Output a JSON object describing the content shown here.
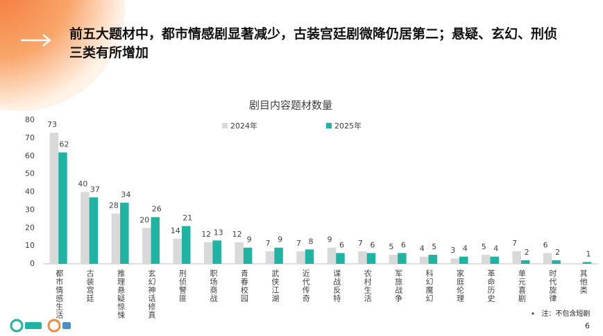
{
  "header": {
    "title": "前五大题材中，都市情感剧显著减少，古装宫廷剧微降仍居第二；悬疑、玄幻、刑侦三类有所增加"
  },
  "note": "注：不包含短剧",
  "page_number": "6",
  "chart_data": {
    "type": "bar",
    "title": "剧目内容题材数量",
    "categories": [
      "都市情感生活",
      "古装宫廷",
      "推理悬疑惊悚",
      "玄幻神话修真",
      "刑侦警匪",
      "职场商战",
      "青春校园",
      "武侠江湖",
      "近代传奇",
      "谍战反特",
      "农村生活",
      "军旅战争",
      "科幻魔幻",
      "家庭伦理",
      "革命历史",
      "单元喜剧",
      "时代旋律",
      "其他类"
    ],
    "series": [
      {
        "name": "2024年",
        "color": "#d9d9d9",
        "values": [
          73,
          40,
          28,
          20,
          14,
          12,
          12,
          7,
          7,
          9,
          7,
          5,
          4,
          3,
          5,
          7,
          6,
          null
        ]
      },
      {
        "name": "2025年",
        "color": "#1fb3a3",
        "values": [
          62,
          37,
          34,
          26,
          21,
          13,
          9,
          9,
          8,
          6,
          6,
          6,
          5,
          4,
          4,
          2,
          2,
          1
        ]
      }
    ],
    "ylim": [
      0,
      80
    ],
    "yticks": [
      0,
      10,
      20,
      30,
      40,
      50,
      60,
      70,
      80
    ],
    "grid": false,
    "legend": "top"
  }
}
